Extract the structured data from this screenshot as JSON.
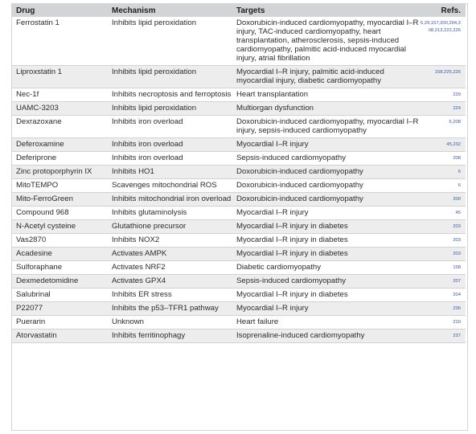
{
  "table": {
    "headers": {
      "drug": "Drug",
      "mechanism": "Mechanism",
      "targets": "Targets",
      "refs": "Refs."
    },
    "rows": [
      {
        "drug": "Ferrostatin 1",
        "mechanism": "Inhibits lipid peroxidation",
        "targets": "Doxorubicin-induced cardiomyopathy, myocardial I–R injury, TAC-induced cardiomyopathy, heart transplantation, atherosclerosis, sepsis-induced cardiomyopathy, palmitic acid-induced myocardial injury, atrial fibrillation",
        "refs": "6,29,157,200,204,208,213,222,226"
      },
      {
        "drug": "Liproxstatin 1",
        "mechanism": "Inhibits lipid peroxidation",
        "targets": "Myocardial I–R injury, palmitic acid-induced myocardial injury, diabetic cardiomyopathy",
        "refs": "158,225,226"
      },
      {
        "drug": "Nec-1f",
        "mechanism": "Inhibits necroptosis and ferroptosis",
        "targets": "Heart transplantation",
        "refs": "229"
      },
      {
        "drug": "UAMC-3203",
        "mechanism": "Inhibits lipid peroxidation",
        "targets": "Multiorgan dysfunction",
        "refs": "224"
      },
      {
        "drug": "Dexrazoxane",
        "mechanism": "Inhibits iron overload",
        "targets": "Doxorubicin-induced cardiomyopathy, myocardial I–R injury, sepsis-induced cardiomyopathy",
        "refs": "6,208"
      },
      {
        "drug": "Deferoxamine",
        "mechanism": "Inhibits iron overload",
        "targets": "Myocardial I–R injury",
        "refs": "45,232"
      },
      {
        "drug": "Deferiprone",
        "mechanism": "Inhibits iron overload",
        "targets": "Sepsis-induced cardiomyopathy",
        "refs": "208"
      },
      {
        "drug": "Zinc protoporphyrin IX",
        "mechanism": "Inhibits HO1",
        "targets": "Doxorubicin-induced cardiomyopathy",
        "refs": "6"
      },
      {
        "drug": "MitoTEMPO",
        "mechanism": "Scavenges mitochondrial ROS",
        "targets": "Doxorubicin-induced cardiomyopathy",
        "refs": "6"
      },
      {
        "drug": "Mito-FerroGreen",
        "mechanism": "Inhibits mitochondrial iron overload",
        "targets": "Doxorubicin-induced cardiomyopathy",
        "refs": "200"
      },
      {
        "drug": "Compound 968",
        "mechanism": "Inhibits glutaminolysis",
        "targets": "Myocardial I–R injury",
        "refs": "45"
      },
      {
        "drug": "N-Acetyl cysteine",
        "mechanism": "Glutathione precursor",
        "targets": "Myocardial I–R injury in diabetes",
        "refs": "203"
      },
      {
        "drug": "Vas2870",
        "mechanism": "Inhibits NOX2",
        "targets": "Myocardial I–R injury in diabetes",
        "refs": "203"
      },
      {
        "drug": "Acadesine",
        "mechanism": "Activates AMPK",
        "targets": "Myocardial I–R injury in diabetes",
        "refs": "203"
      },
      {
        "drug": "Sulforaphane",
        "mechanism": "Activates NRF2",
        "targets": "Diabetic cardiomyopathy",
        "refs": "158"
      },
      {
        "drug": "Dexmedetomidine",
        "mechanism": "Activates GPX4",
        "targets": "Sepsis-induced cardiomyopathy",
        "refs": "207"
      },
      {
        "drug": "Salubrinal",
        "mechanism": "Inhibits ER stress",
        "targets": "Myocardial I–R injury in diabetes",
        "refs": "204"
      },
      {
        "drug": "P22077",
        "mechanism": "Inhibits the p53–TFR1 pathway",
        "targets": "Myocardial I–R injury",
        "refs": "236"
      },
      {
        "drug": "Puerarin",
        "mechanism": "Unknown",
        "targets": "Heart failure",
        "refs": "210"
      },
      {
        "drug": "Atorvastatin",
        "mechanism": "Inhibits ferritinophagy",
        "targets": "Isoprenaline-induced cardiomyopathy",
        "refs": "237"
      }
    ]
  }
}
